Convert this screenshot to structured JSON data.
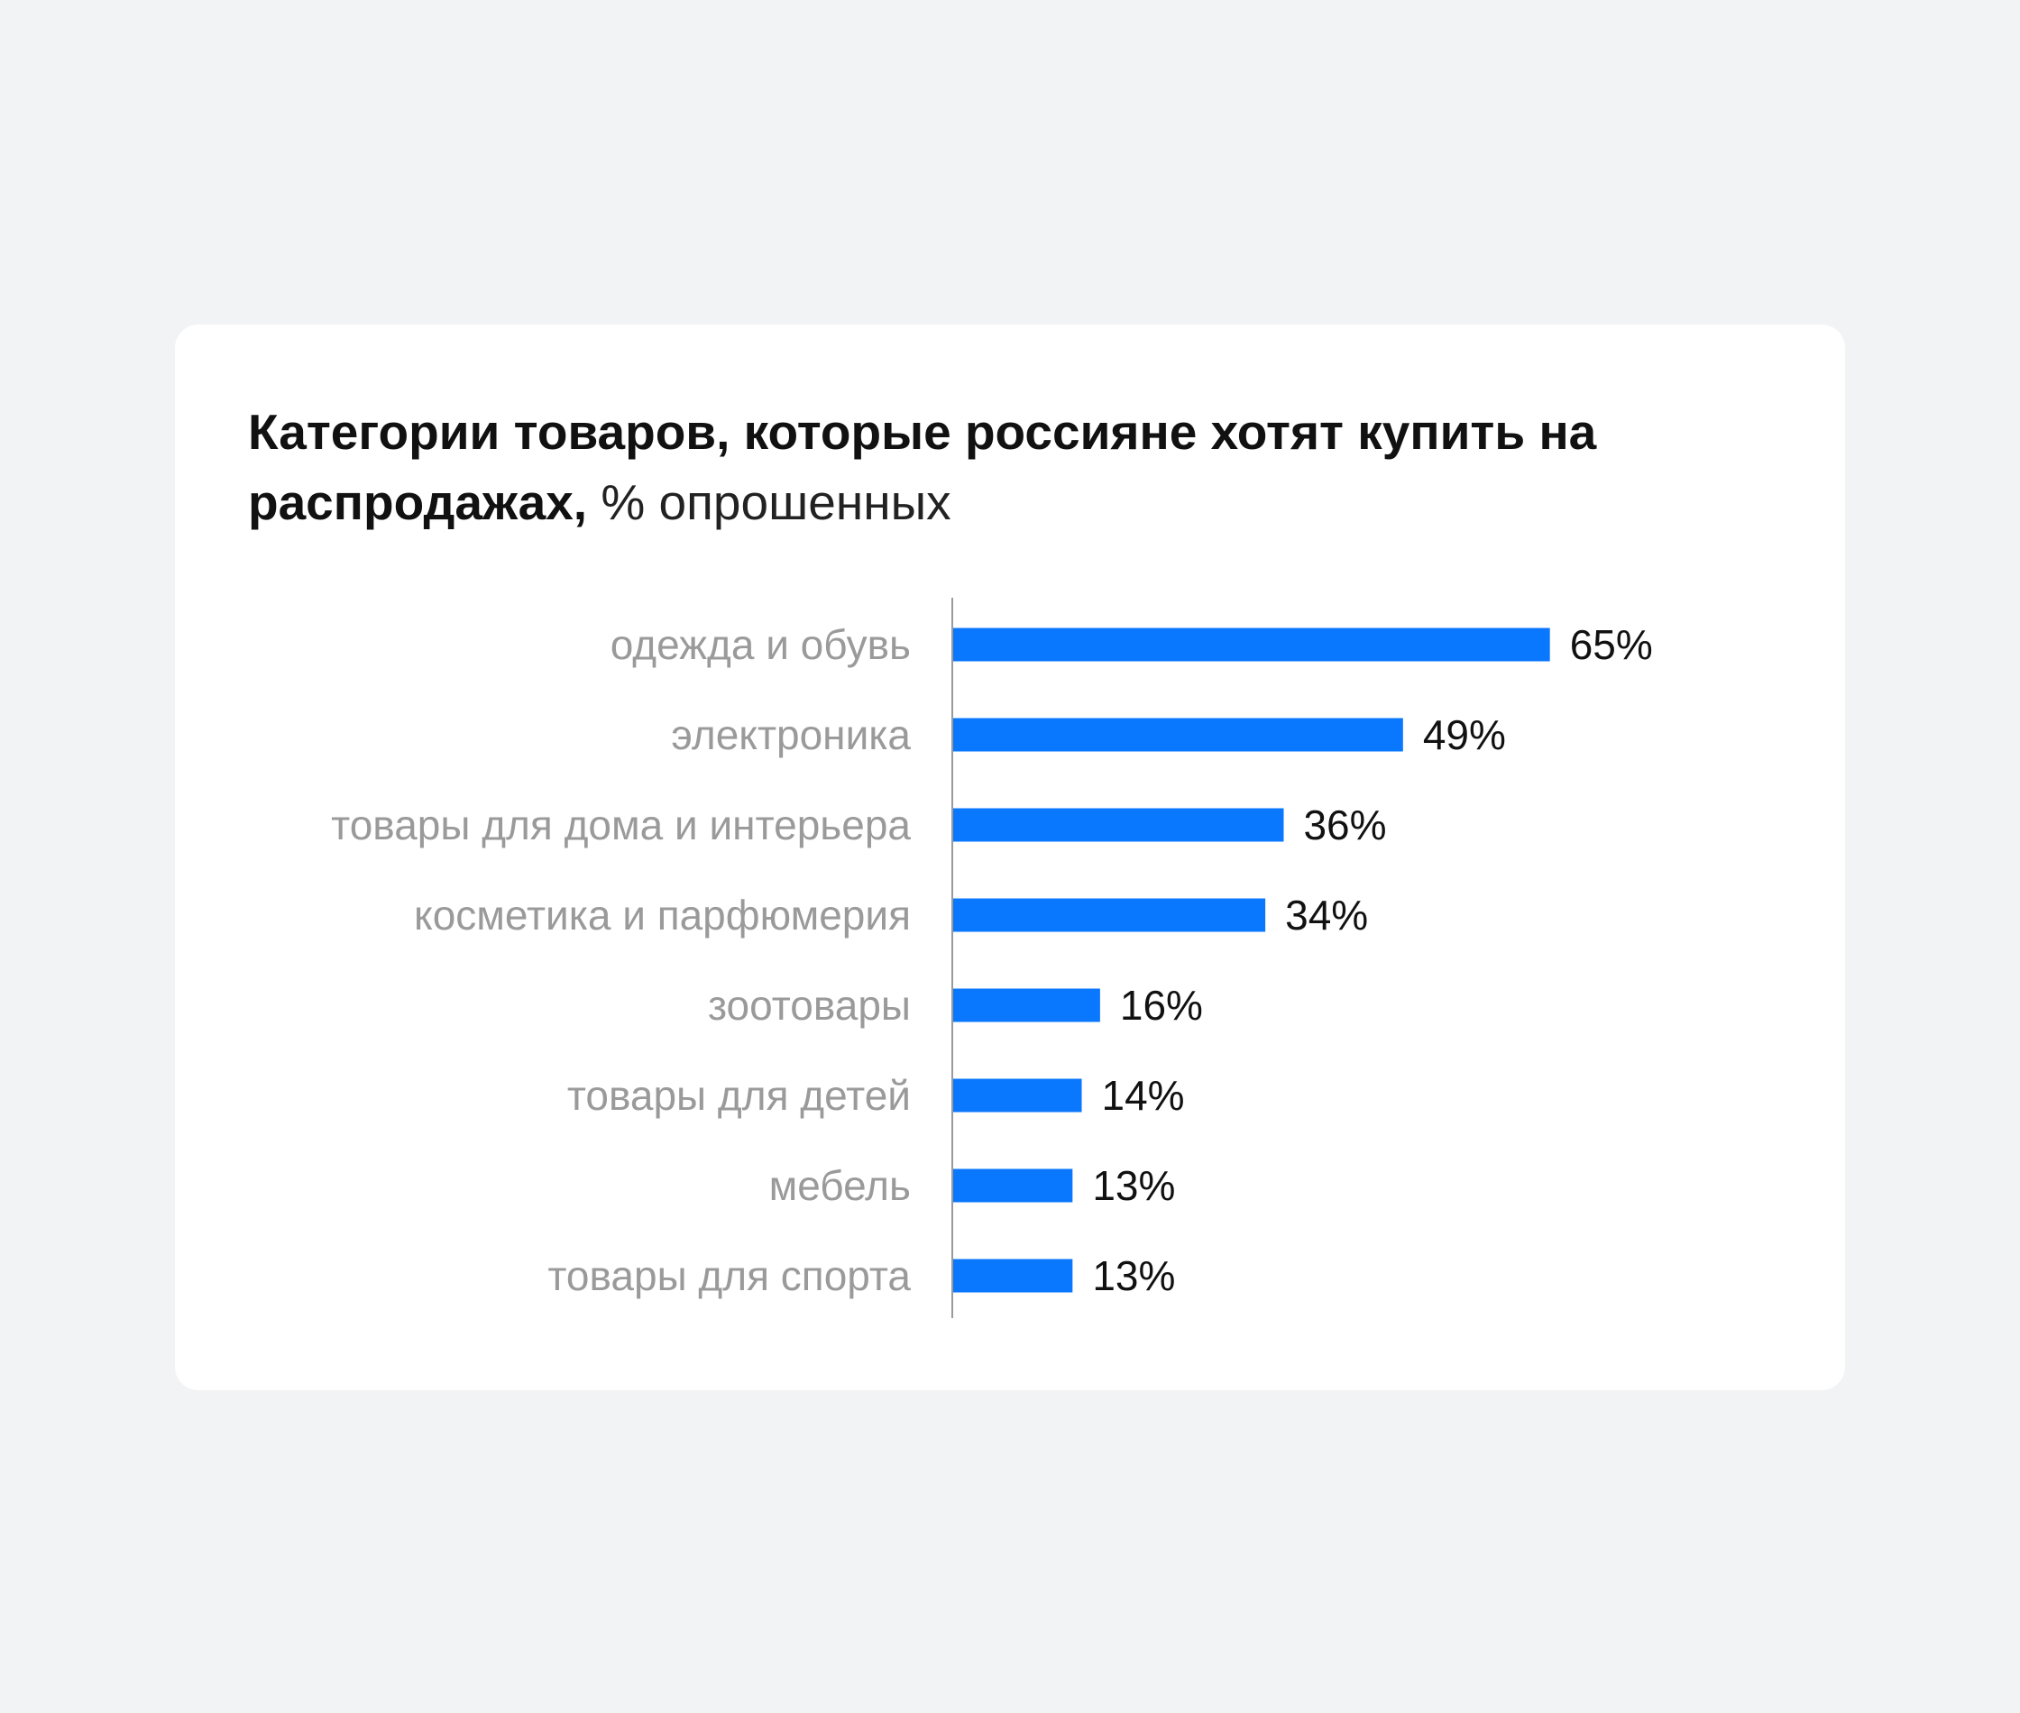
{
  "chart_data": {
    "type": "bar",
    "orientation": "horizontal",
    "title": "Категории товаров, которые россияне хотят купить на распродажах,",
    "subtitle": "% опрошенных",
    "categories": [
      "одежда и обувь",
      "электроника",
      "товары для дома и интерьера",
      "косметика и парфюмерия",
      "зоотовары",
      "товары для детей",
      "мебель",
      "товары для спорта"
    ],
    "values": [
      65,
      49,
      36,
      34,
      16,
      14,
      13,
      13
    ],
    "value_labels": [
      "65%",
      "49%",
      "36%",
      "34%",
      "16%",
      "14%",
      "13%",
      "13%"
    ],
    "xlim": [
      0,
      100
    ],
    "grid": false,
    "bar_color": "#0a77ff",
    "axis_color": "#9a9a9a"
  }
}
